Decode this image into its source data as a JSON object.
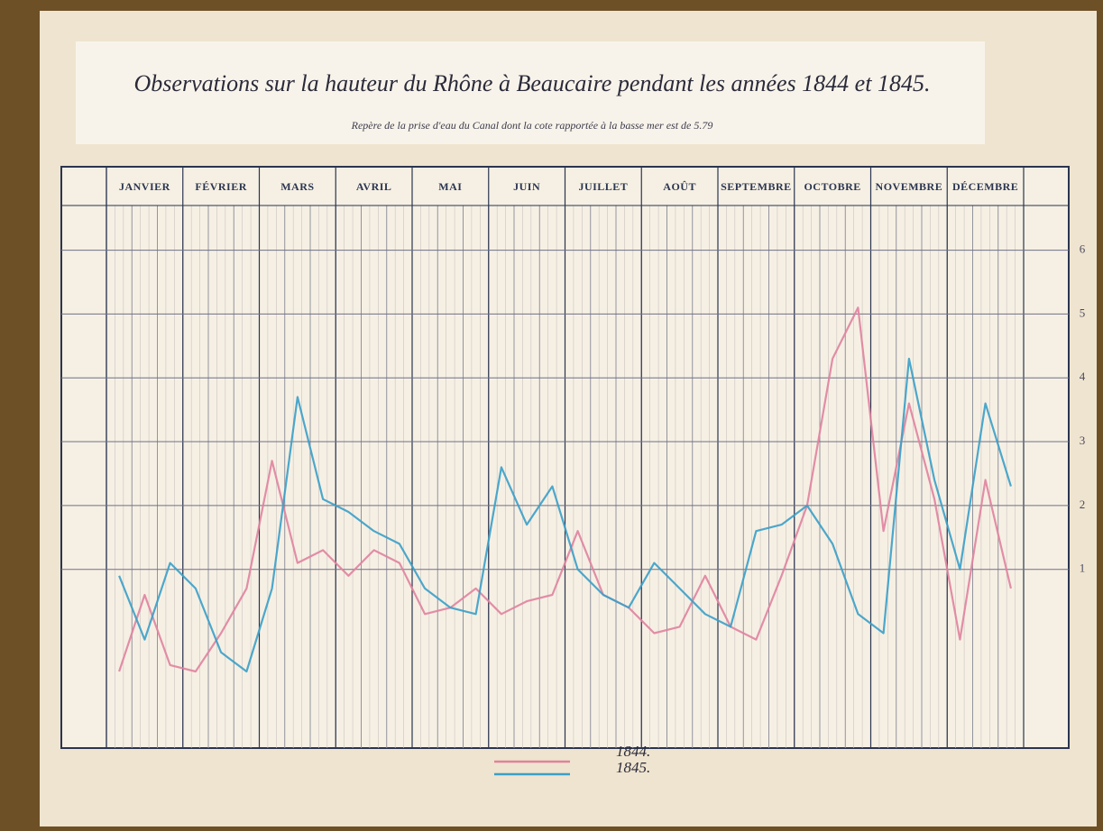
{
  "chart_data": {
    "type": "line",
    "title": "Observations sur la hauteur du Rhône à Beaucaire pendant les années 1844 et 1845.",
    "subtitle": "Repère de la prise d'eau du Canal dont la cote rapportée à la basse mer est de 5.79",
    "categories": [
      "JANVIER",
      null,
      null,
      "FÉVRIER",
      null,
      null,
      "MARS",
      null,
      null,
      "AVRIL",
      null,
      null,
      "MAI",
      null,
      null,
      "JUIN",
      null,
      null,
      "JUILLET",
      null,
      null,
      "AOÛT",
      null,
      null,
      "SEPTEMBRE",
      null,
      null,
      "OCTOBRE",
      null,
      null,
      "NOVEMBRE",
      null,
      null,
      "DÉCEMBRE",
      null,
      null
    ],
    "series": [
      {
        "name": "1844.",
        "color": "#e0829e",
        "values": [
          -0.6,
          0.6,
          -0.5,
          -0.6,
          0.0,
          0.7,
          2.7,
          1.1,
          1.3,
          0.9,
          1.3,
          1.1,
          0.3,
          0.4,
          0.7,
          0.3,
          0.5,
          0.6,
          1.6,
          0.6,
          0.4,
          0.0,
          0.1,
          0.9,
          0.1,
          -0.1,
          0.9,
          2.0,
          4.3,
          5.1,
          1.6,
          3.6,
          2.1,
          -0.1,
          2.4,
          0.7
        ]
      },
      {
        "name": "1845.",
        "color": "#3a9fc8",
        "values": [
          0.9,
          -0.1,
          1.1,
          0.7,
          -0.3,
          -0.6,
          0.7,
          3.7,
          2.1,
          1.9,
          1.6,
          1.4,
          0.7,
          0.4,
          0.3,
          2.6,
          1.7,
          2.3,
          1.0,
          0.6,
          0.4,
          1.1,
          0.7,
          0.3,
          0.1,
          1.6,
          1.7,
          2.0,
          1.4,
          0.3,
          0.0,
          4.3,
          2.4,
          1.0,
          3.6,
          2.3
        ]
      }
    ],
    "ylim": [
      -1.8,
      6.7
    ],
    "yticks": [
      1,
      2,
      3,
      4,
      5,
      6
    ],
    "grid": true
  }
}
